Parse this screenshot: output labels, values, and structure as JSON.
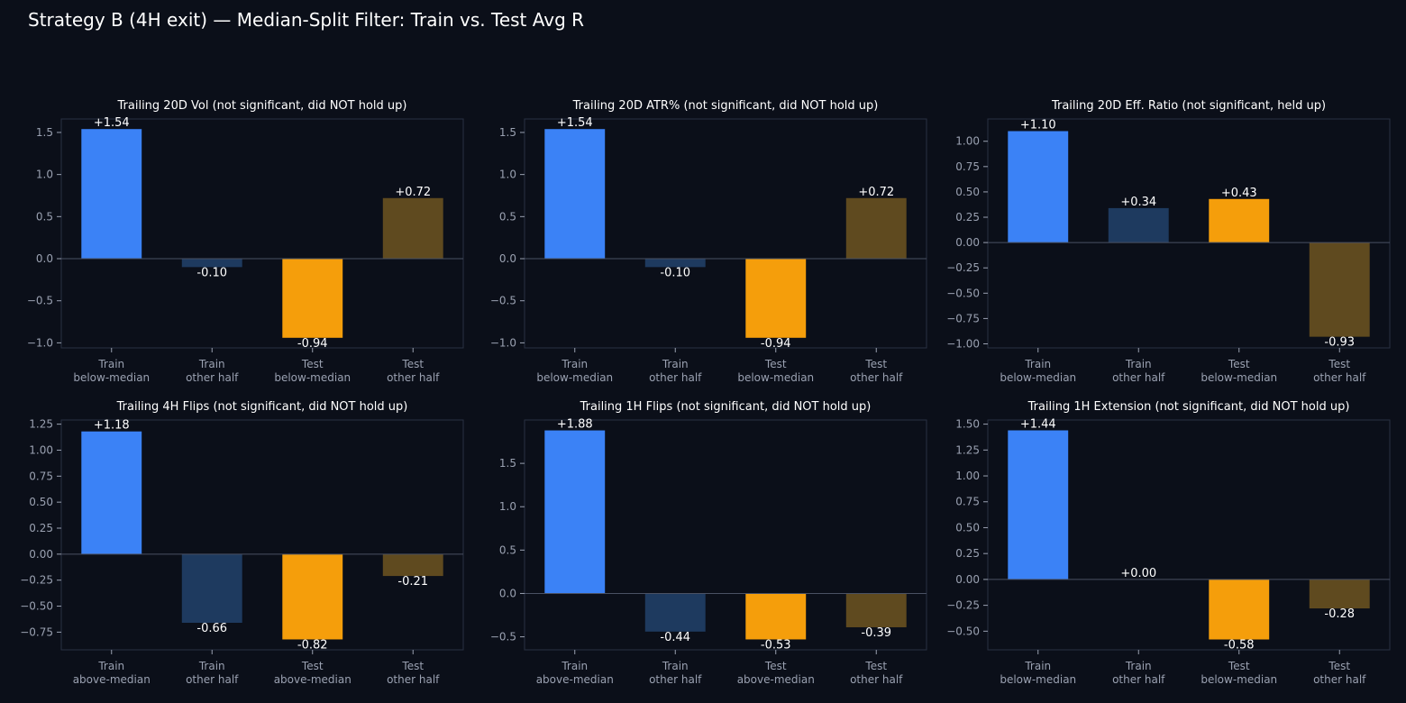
{
  "page": {
    "title": "Strategy B (4H exit) — Median-Split Filter: Train vs. Test Avg R"
  },
  "colors": {
    "background": "#0b0f19",
    "frame": "#2a3142",
    "zero_line": "#4a5163",
    "tick_text": "#9aa1b1",
    "title_text": "#ffffff",
    "value_text": "#ffffff",
    "bar_colors": [
      "#3b82f6",
      "#1e3a5f",
      "#f59e0b",
      "#5f4a1f"
    ]
  },
  "chart_data": [
    {
      "type": "bar",
      "title": "Trailing 20D Vol (not significant, did NOT hold up)",
      "categories": [
        "Train\nbelow-median",
        "Train\nother half",
        "Test\nbelow-median",
        "Test\nother half"
      ],
      "values": [
        1.54,
        -0.1,
        -0.94,
        0.72
      ],
      "value_labels": [
        "+1.54",
        "-0.10",
        "-0.94",
        "+0.72"
      ],
      "ylim": [
        -1.06,
        1.66
      ],
      "yticks": [
        1.5,
        1.0,
        0.5,
        0.0,
        -0.5,
        -1.0
      ],
      "ytick_labels": [
        "1.5",
        "1.0",
        "0.5",
        "0.0",
        "−0.5",
        "−1.0"
      ]
    },
    {
      "type": "bar",
      "title": "Trailing 20D ATR% (not significant, did NOT hold up)",
      "categories": [
        "Train\nbelow-median",
        "Train\nother half",
        "Test\nbelow-median",
        "Test\nother half"
      ],
      "values": [
        1.54,
        -0.1,
        -0.94,
        0.72
      ],
      "value_labels": [
        "+1.54",
        "-0.10",
        "-0.94",
        "+0.72"
      ],
      "ylim": [
        -1.06,
        1.66
      ],
      "yticks": [
        1.5,
        1.0,
        0.5,
        0.0,
        -0.5,
        -1.0
      ],
      "ytick_labels": [
        "1.5",
        "1.0",
        "0.5",
        "0.0",
        "−0.5",
        "−1.0"
      ]
    },
    {
      "type": "bar",
      "title": "Trailing 20D Eff. Ratio (not significant, held up)",
      "categories": [
        "Train\nbelow-median",
        "Train\nother half",
        "Test\nbelow-median",
        "Test\nother half"
      ],
      "values": [
        1.1,
        0.34,
        0.43,
        -0.93
      ],
      "value_labels": [
        "+1.10",
        "+0.34",
        "+0.43",
        "-0.93"
      ],
      "ylim": [
        -1.04,
        1.22
      ],
      "yticks": [
        1.0,
        0.75,
        0.5,
        0.25,
        0.0,
        -0.25,
        -0.5,
        -0.75,
        -1.0
      ],
      "ytick_labels": [
        "1.00",
        "0.75",
        "0.50",
        "0.25",
        "0.00",
        "−0.25",
        "−0.50",
        "−0.75",
        "−1.00"
      ]
    },
    {
      "type": "bar",
      "title": "Trailing 4H Flips (not significant, did NOT hold up)",
      "categories": [
        "Train\nabove-median",
        "Train\nother half",
        "Test\nabove-median",
        "Test\nother half"
      ],
      "values": [
        1.18,
        -0.66,
        -0.82,
        -0.21
      ],
      "value_labels": [
        "+1.18",
        "-0.66",
        "-0.82",
        "-0.21"
      ],
      "ylim": [
        -0.92,
        1.29
      ],
      "yticks": [
        1.25,
        1.0,
        0.75,
        0.5,
        0.25,
        0.0,
        -0.25,
        -0.5,
        -0.75
      ],
      "ytick_labels": [
        "1.25",
        "1.00",
        "0.75",
        "0.50",
        "0.25",
        "0.00",
        "−0.25",
        "−0.50",
        "−0.75"
      ]
    },
    {
      "type": "bar",
      "title": "Trailing 1H Flips (not significant, did NOT hold up)",
      "categories": [
        "Train\nabove-median",
        "Train\nother half",
        "Test\nabove-median",
        "Test\nother half"
      ],
      "values": [
        1.88,
        -0.44,
        -0.53,
        -0.39
      ],
      "value_labels": [
        "+1.88",
        "-0.44",
        "-0.53",
        "-0.39"
      ],
      "ylim": [
        -0.65,
        2.0
      ],
      "yticks": [
        1.5,
        1.0,
        0.5,
        0.0,
        -0.5
      ],
      "ytick_labels": [
        "1.5",
        "1.0",
        "0.5",
        "0.0",
        "−0.5"
      ]
    },
    {
      "type": "bar",
      "title": "Trailing 1H Extension (not significant, did NOT hold up)",
      "categories": [
        "Train\nbelow-median",
        "Train\nother half",
        "Test\nbelow-median",
        "Test\nother half"
      ],
      "values": [
        1.44,
        0.0,
        -0.58,
        -0.28
      ],
      "value_labels": [
        "+1.44",
        "+0.00",
        "-0.58",
        "-0.28"
      ],
      "ylim": [
        -0.68,
        1.54
      ],
      "yticks": [
        1.5,
        1.25,
        1.0,
        0.75,
        0.5,
        0.25,
        0.0,
        -0.25,
        -0.5
      ],
      "ytick_labels": [
        "1.50",
        "1.25",
        "1.00",
        "0.75",
        "0.50",
        "0.25",
        "0.00",
        "−0.25",
        "−0.50"
      ]
    }
  ]
}
